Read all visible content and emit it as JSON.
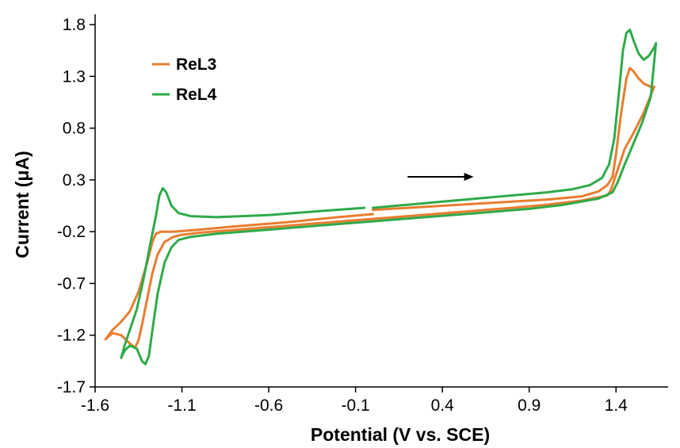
{
  "chart_data": {
    "type": "line",
    "title": "",
    "xlabel": "Potential  (V vs. SCE)",
    "ylabel": "Current  (μA)",
    "xlim": [
      -1.6,
      1.7
    ],
    "ylim": [
      -1.7,
      1.9
    ],
    "x_ticks": [
      "-1.6",
      "-1.1",
      "-0.6",
      "-0.1",
      "0.4",
      "0.9",
      "1.4"
    ],
    "y_ticks": [
      "-1.7",
      "-1.2",
      "-0.7",
      "-0.2",
      "0.3",
      "0.8",
      "1.3",
      "1.8"
    ],
    "grid": false,
    "legend": {
      "position": "top-left"
    },
    "arrow": {
      "from": [
        0.2,
        0.33
      ],
      "to": [
        0.58,
        0.33
      ]
    },
    "series": [
      {
        "name": "ReL3",
        "color": "#e87d2f",
        "points": [
          [
            0.0,
            0.01
          ],
          [
            0.2,
            0.03
          ],
          [
            0.4,
            0.05
          ],
          [
            0.6,
            0.07
          ],
          [
            0.8,
            0.09
          ],
          [
            1.0,
            0.11
          ],
          [
            1.2,
            0.14
          ],
          [
            1.3,
            0.19
          ],
          [
            1.35,
            0.25
          ],
          [
            1.38,
            0.33
          ],
          [
            1.4,
            0.55
          ],
          [
            1.43,
            0.95
          ],
          [
            1.46,
            1.28
          ],
          [
            1.48,
            1.38
          ],
          [
            1.5,
            1.35
          ],
          [
            1.53,
            1.28
          ],
          [
            1.56,
            1.23
          ],
          [
            1.6,
            1.2
          ],
          [
            1.62,
            1.2
          ],
          [
            1.56,
            0.95
          ],
          [
            1.5,
            0.75
          ],
          [
            1.45,
            0.6
          ],
          [
            1.42,
            0.45
          ],
          [
            1.39,
            0.3
          ],
          [
            1.37,
            0.2
          ],
          [
            1.35,
            0.15
          ],
          [
            1.2,
            0.1
          ],
          [
            1.0,
            0.06
          ],
          [
            0.8,
            0.03
          ],
          [
            0.5,
            -0.01
          ],
          [
            0.2,
            -0.05
          ],
          [
            -0.1,
            -0.09
          ],
          [
            -0.4,
            -0.13
          ],
          [
            -0.7,
            -0.17
          ],
          [
            -1.0,
            -0.21
          ],
          [
            -1.1,
            -0.23
          ],
          [
            -1.15,
            -0.25
          ],
          [
            -1.2,
            -0.3
          ],
          [
            -1.24,
            -0.42
          ],
          [
            -1.27,
            -0.6
          ],
          [
            -1.3,
            -0.85
          ],
          [
            -1.33,
            -1.1
          ],
          [
            -1.35,
            -1.25
          ],
          [
            -1.37,
            -1.32
          ],
          [
            -1.4,
            -1.28
          ],
          [
            -1.45,
            -1.2
          ],
          [
            -1.5,
            -1.18
          ],
          [
            -1.54,
            -1.24
          ],
          [
            -1.5,
            -1.15
          ],
          [
            -1.45,
            -1.07
          ],
          [
            -1.4,
            -0.97
          ],
          [
            -1.35,
            -0.78
          ],
          [
            -1.3,
            -0.5
          ],
          [
            -1.27,
            -0.3
          ],
          [
            -1.25,
            -0.22
          ],
          [
            -1.22,
            -0.2
          ],
          [
            -1.15,
            -0.2
          ],
          [
            -1.0,
            -0.18
          ],
          [
            -0.8,
            -0.15
          ],
          [
            -0.5,
            -0.11
          ],
          [
            -0.2,
            -0.06
          ],
          [
            0.0,
            -0.03
          ]
        ]
      },
      {
        "name": "ReL4",
        "color": "#2faa4a",
        "points": [
          [
            0.0,
            0.03
          ],
          [
            0.2,
            0.06
          ],
          [
            0.4,
            0.09
          ],
          [
            0.6,
            0.12
          ],
          [
            0.8,
            0.15
          ],
          [
            1.0,
            0.18
          ],
          [
            1.15,
            0.21
          ],
          [
            1.25,
            0.25
          ],
          [
            1.32,
            0.32
          ],
          [
            1.36,
            0.45
          ],
          [
            1.39,
            0.7
          ],
          [
            1.42,
            1.2
          ],
          [
            1.44,
            1.55
          ],
          [
            1.46,
            1.72
          ],
          [
            1.48,
            1.75
          ],
          [
            1.5,
            1.65
          ],
          [
            1.53,
            1.52
          ],
          [
            1.56,
            1.46
          ],
          [
            1.59,
            1.5
          ],
          [
            1.62,
            1.58
          ],
          [
            1.63,
            1.62
          ],
          [
            1.6,
            1.1
          ],
          [
            1.55,
            0.85
          ],
          [
            1.5,
            0.65
          ],
          [
            1.45,
            0.45
          ],
          [
            1.41,
            0.28
          ],
          [
            1.38,
            0.18
          ],
          [
            1.3,
            0.12
          ],
          [
            1.1,
            0.06
          ],
          [
            0.9,
            0.02
          ],
          [
            0.6,
            -0.02
          ],
          [
            0.3,
            -0.06
          ],
          [
            0.0,
            -0.1
          ],
          [
            -0.3,
            -0.14
          ],
          [
            -0.6,
            -0.18
          ],
          [
            -0.9,
            -0.22
          ],
          [
            -1.05,
            -0.25
          ],
          [
            -1.12,
            -0.28
          ],
          [
            -1.16,
            -0.35
          ],
          [
            -1.2,
            -0.5
          ],
          [
            -1.24,
            -0.8
          ],
          [
            -1.27,
            -1.15
          ],
          [
            -1.29,
            -1.4
          ],
          [
            -1.31,
            -1.48
          ],
          [
            -1.33,
            -1.45
          ],
          [
            -1.36,
            -1.33
          ],
          [
            -1.4,
            -1.3
          ],
          [
            -1.43,
            -1.35
          ],
          [
            -1.45,
            -1.42
          ],
          [
            -1.43,
            -1.3
          ],
          [
            -1.4,
            -1.15
          ],
          [
            -1.36,
            -0.95
          ],
          [
            -1.32,
            -0.65
          ],
          [
            -1.28,
            -0.3
          ],
          [
            -1.25,
            -0.05
          ],
          [
            -1.23,
            0.15
          ],
          [
            -1.21,
            0.22
          ],
          [
            -1.19,
            0.18
          ],
          [
            -1.16,
            0.05
          ],
          [
            -1.12,
            -0.02
          ],
          [
            -1.05,
            -0.05
          ],
          [
            -0.9,
            -0.06
          ],
          [
            -0.6,
            -0.04
          ],
          [
            -0.3,
            0.0
          ],
          [
            -0.05,
            0.03
          ]
        ]
      }
    ]
  }
}
